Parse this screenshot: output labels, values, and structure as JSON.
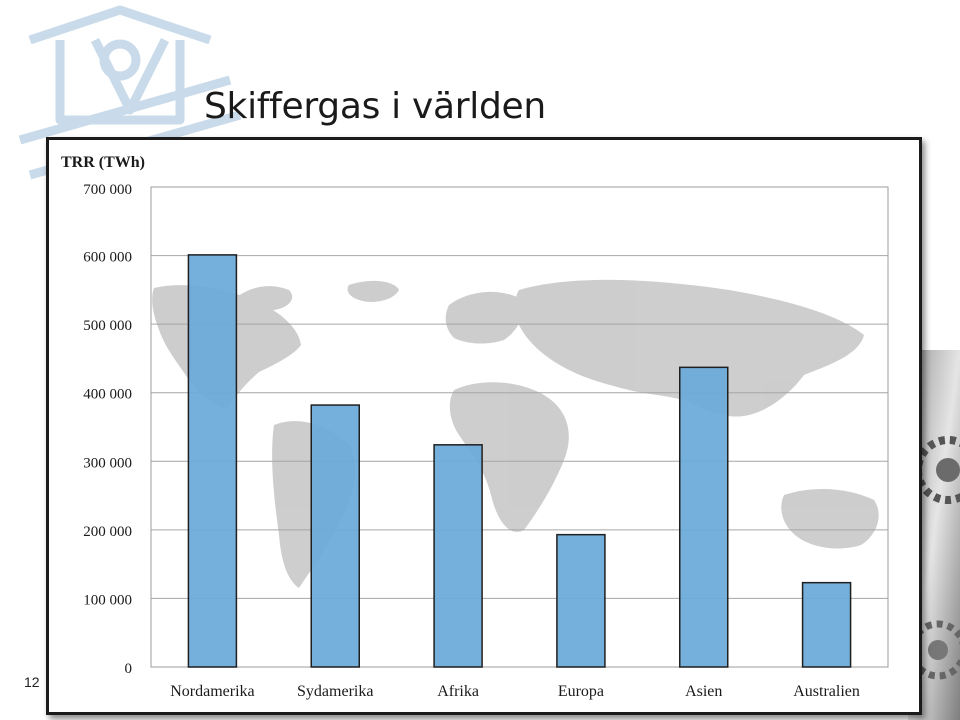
{
  "slide": {
    "title": "Skiffergas i världen",
    "number": "12"
  },
  "chart_data": {
    "type": "bar",
    "ylabel": "TRR (TWh)",
    "xlabel": "",
    "categories": [
      "Nordamerika",
      "Sydamerika",
      "Afrika",
      "Europa",
      "Asien",
      "Australien"
    ],
    "values": [
      601000,
      382000,
      324000,
      193000,
      437000,
      123000
    ],
    "yticks": [
      "0",
      "100 000",
      "200 000",
      "300 000",
      "400 000",
      "500 000",
      "600 000",
      "700 000"
    ],
    "ylim": [
      0,
      700000
    ],
    "grid": true,
    "legend": "none",
    "bar_color": "#6aaad9",
    "bar_border_color": "#1f1f1f",
    "background": "world-map"
  },
  "colors": {
    "logo": "#c9daea",
    "map_land": "#bdbdbd"
  }
}
